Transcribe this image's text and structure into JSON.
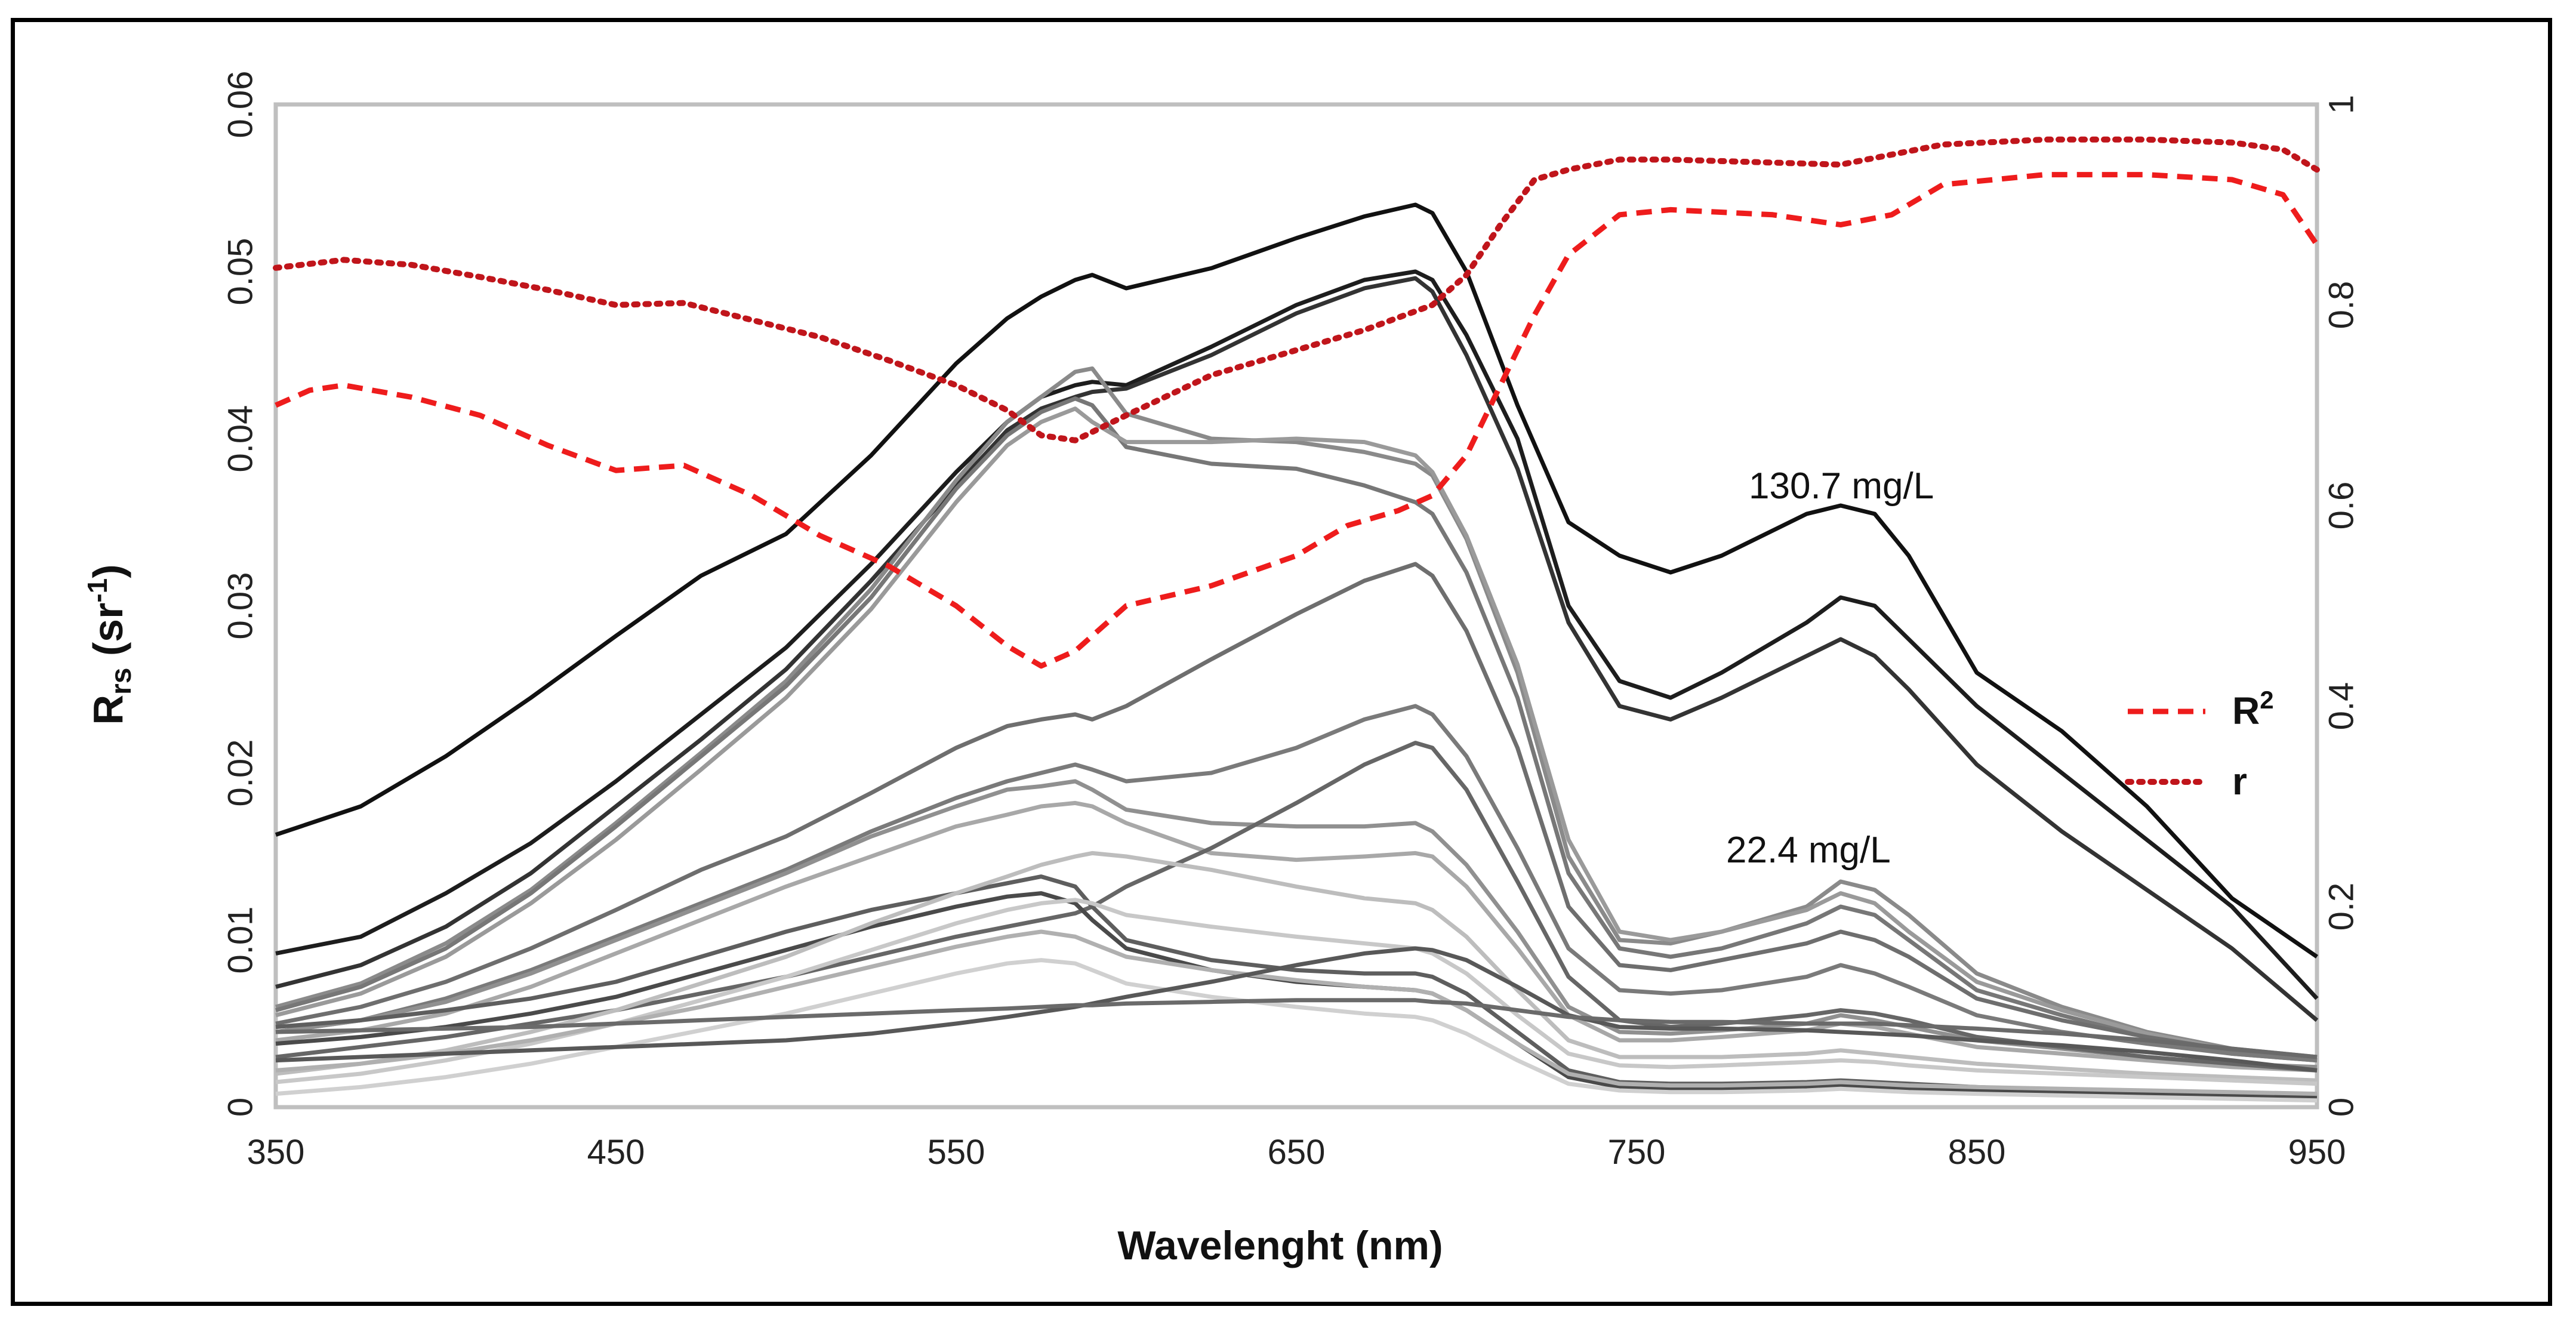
{
  "chart_data": {
    "type": "line",
    "title": "",
    "xlabel": "Wavelenght (nm)",
    "ylabel": {
      "main": "R",
      "sub": "rs",
      "unit_open": " (sr",
      "unit_sup": "-1",
      "unit_close": ")"
    },
    "xlim": [
      350,
      950
    ],
    "xticks": [
      350,
      450,
      550,
      650,
      750,
      850,
      950
    ],
    "ylim": [
      0,
      0.06
    ],
    "yticks": [
      0,
      0.01,
      0.02,
      0.03,
      0.04,
      0.05,
      0.06
    ],
    "ytick_labels": [
      "0",
      "0.01",
      "0.02",
      "0.03",
      "0.04",
      "0.05",
      "0.06"
    ],
    "y2lim": [
      0,
      1
    ],
    "y2ticks": [
      0,
      0.2,
      0.4,
      0.6,
      0.8,
      1
    ],
    "y2tick_labels": [
      "0",
      "0.2",
      "0.4",
      "0.6",
      "0.8",
      "1"
    ],
    "grid": false,
    "legend": {
      "placement": "right",
      "entries": [
        {
          "name": "R",
          "sup": "2",
          "style": "dashed",
          "color": "#ee1c1c"
        },
        {
          "name": "r",
          "sup": "",
          "style": "dotted",
          "color": "#c0151b"
        }
      ]
    },
    "annotations": [
      {
        "text": "130.7 mg/L",
        "x": 830,
        "y": 0.0368
      },
      {
        "text": "22.4 mg/L",
        "x": 810,
        "y": 0.0155
      }
    ],
    "x": [
      350,
      375,
      400,
      425,
      450,
      475,
      500,
      525,
      550,
      565,
      575,
      585,
      590,
      600,
      625,
      650,
      670,
      685,
      690,
      700,
      715,
      730,
      745,
      760,
      775,
      800,
      810,
      820,
      830,
      850,
      875,
      900,
      925,
      950
    ],
    "spectra": [
      {
        "color": "#111111",
        "values": [
          0.0163,
          0.018,
          0.021,
          0.0245,
          0.0282,
          0.0318,
          0.0343,
          0.039,
          0.0445,
          0.0472,
          0.0485,
          0.0495,
          0.0498,
          0.049,
          0.0502,
          0.052,
          0.0533,
          0.054,
          0.0535,
          0.05,
          0.042,
          0.035,
          0.033,
          0.032,
          0.033,
          0.0355,
          0.036,
          0.0355,
          0.033,
          0.026,
          0.0225,
          0.018,
          0.0125,
          0.009
        ]
      },
      {
        "color": "#1d1d1d",
        "values": [
          0.0092,
          0.0102,
          0.0128,
          0.0158,
          0.0195,
          0.0235,
          0.0275,
          0.0325,
          0.038,
          0.041,
          0.0425,
          0.0432,
          0.0434,
          0.0432,
          0.0455,
          0.048,
          0.0495,
          0.05,
          0.0495,
          0.0462,
          0.04,
          0.03,
          0.0255,
          0.0245,
          0.026,
          0.029,
          0.0305,
          0.03,
          0.028,
          0.024,
          0.02,
          0.016,
          0.012,
          0.0065
        ]
      },
      {
        "color": "#333333",
        "values": [
          0.0072,
          0.0085,
          0.0108,
          0.014,
          0.018,
          0.022,
          0.0262,
          0.0315,
          0.0372,
          0.0405,
          0.0418,
          0.0425,
          0.0428,
          0.043,
          0.045,
          0.0475,
          0.049,
          0.0496,
          0.0488,
          0.045,
          0.0382,
          0.029,
          0.024,
          0.0232,
          0.0245,
          0.027,
          0.028,
          0.027,
          0.025,
          0.0205,
          0.0165,
          0.013,
          0.0095,
          0.0052
        ]
      },
      {
        "color": "#8a8a8a",
        "values": [
          0.006,
          0.0074,
          0.0098,
          0.013,
          0.017,
          0.0212,
          0.0255,
          0.031,
          0.0375,
          0.041,
          0.0425,
          0.044,
          0.0442,
          0.0415,
          0.04,
          0.0398,
          0.0392,
          0.0385,
          0.0378,
          0.034,
          0.026,
          0.015,
          0.01,
          0.0098,
          0.0105,
          0.012,
          0.0135,
          0.013,
          0.0115,
          0.008,
          0.006,
          0.0045,
          0.0035,
          0.003
        ]
      },
      {
        "color": "#777777",
        "values": [
          0.0058,
          0.0072,
          0.0095,
          0.0128,
          0.0168,
          0.021,
          0.0252,
          0.0305,
          0.037,
          0.0402,
          0.0416,
          0.0424,
          0.042,
          0.0395,
          0.0385,
          0.0382,
          0.0372,
          0.0362,
          0.0355,
          0.032,
          0.0245,
          0.014,
          0.0095,
          0.009,
          0.0095,
          0.011,
          0.012,
          0.0115,
          0.01,
          0.007,
          0.0055,
          0.0042,
          0.0032,
          0.0028
        ]
      },
      {
        "color": "#9a9a9a",
        "values": [
          0.0055,
          0.0068,
          0.009,
          0.0122,
          0.016,
          0.0202,
          0.0245,
          0.0298,
          0.0362,
          0.0396,
          0.041,
          0.0418,
          0.041,
          0.0398,
          0.0398,
          0.04,
          0.0398,
          0.039,
          0.038,
          0.0342,
          0.0265,
          0.016,
          0.0105,
          0.01,
          0.0105,
          0.0118,
          0.0128,
          0.0122,
          0.0105,
          0.0075,
          0.0058,
          0.0044,
          0.0034,
          0.003
        ]
      },
      {
        "color": "#6e6e6e",
        "values": [
          0.005,
          0.006,
          0.0075,
          0.0095,
          0.0118,
          0.0142,
          0.0162,
          0.0188,
          0.0215,
          0.0228,
          0.0232,
          0.0235,
          0.0232,
          0.024,
          0.0268,
          0.0295,
          0.0315,
          0.0325,
          0.0318,
          0.0285,
          0.0215,
          0.012,
          0.0085,
          0.0082,
          0.0088,
          0.0098,
          0.0105,
          0.01,
          0.009,
          0.0065,
          0.0052,
          0.0042,
          0.0034,
          0.003
        ]
      },
      {
        "color": "#7a7a7a",
        "values": [
          0.0045,
          0.0052,
          0.0065,
          0.0082,
          0.0102,
          0.0122,
          0.0142,
          0.0165,
          0.0185,
          0.0195,
          0.02,
          0.0205,
          0.0202,
          0.0195,
          0.02,
          0.0215,
          0.0232,
          0.024,
          0.0235,
          0.021,
          0.0155,
          0.0095,
          0.007,
          0.0068,
          0.007,
          0.0078,
          0.0085,
          0.008,
          0.0072,
          0.0055,
          0.0045,
          0.0038,
          0.0032,
          0.0028
        ]
      },
      {
        "color": "#909090",
        "values": [
          0.0045,
          0.0052,
          0.0063,
          0.008,
          0.01,
          0.012,
          0.014,
          0.0162,
          0.018,
          0.019,
          0.0192,
          0.0195,
          0.019,
          0.0178,
          0.017,
          0.0168,
          0.0168,
          0.017,
          0.0165,
          0.0145,
          0.0105,
          0.006,
          0.0045,
          0.0044,
          0.0046,
          0.005,
          0.0055,
          0.0052,
          0.0048,
          0.004,
          0.0035,
          0.003,
          0.0026,
          0.0024
        ]
      },
      {
        "color": "#a8a8a8",
        "values": [
          0.004,
          0.0046,
          0.0056,
          0.0072,
          0.0092,
          0.0112,
          0.0132,
          0.015,
          0.0168,
          0.0175,
          0.018,
          0.0182,
          0.018,
          0.017,
          0.0152,
          0.0148,
          0.015,
          0.0152,
          0.015,
          0.0132,
          0.0095,
          0.0055,
          0.004,
          0.004,
          0.0042,
          0.0046,
          0.005,
          0.0048,
          0.0044,
          0.0036,
          0.0032,
          0.0028,
          0.0024,
          0.0022
        ]
      },
      {
        "color": "#666666",
        "values": [
          0.003,
          0.0036,
          0.0042,
          0.005,
          0.0058,
          0.0068,
          0.0078,
          0.009,
          0.0102,
          0.0108,
          0.0112,
          0.0116,
          0.012,
          0.0132,
          0.0155,
          0.0182,
          0.0205,
          0.0218,
          0.0215,
          0.019,
          0.0135,
          0.0078,
          0.0052,
          0.0048,
          0.005,
          0.0055,
          0.0058,
          0.0056,
          0.0052,
          0.0042,
          0.0036,
          0.003,
          0.0026,
          0.0022
        ]
      },
      {
        "color": "#5e5e5e",
        "values": [
          0.0048,
          0.0052,
          0.0058,
          0.0065,
          0.0075,
          0.009,
          0.0105,
          0.0118,
          0.0128,
          0.0134,
          0.0138,
          0.0132,
          0.012,
          0.01,
          0.0088,
          0.0082,
          0.008,
          0.008,
          0.0078,
          0.0068,
          0.0045,
          0.0022,
          0.0015,
          0.0014,
          0.0014,
          0.0015,
          0.0016,
          0.0015,
          0.0014,
          0.0012,
          0.001,
          0.0009,
          0.0008,
          0.0007
        ]
      },
      {
        "color": "#4a4a4a",
        "values": [
          0.0038,
          0.0042,
          0.0048,
          0.0056,
          0.0066,
          0.008,
          0.0094,
          0.0108,
          0.012,
          0.0126,
          0.0128,
          0.0122,
          0.0112,
          0.0095,
          0.0082,
          0.0075,
          0.0072,
          0.007,
          0.0068,
          0.0058,
          0.0038,
          0.0018,
          0.0012,
          0.0011,
          0.0011,
          0.0012,
          0.0013,
          0.0012,
          0.0011,
          0.001,
          0.0009,
          0.0008,
          0.0007,
          0.0006
        ]
      },
      {
        "color": "#bdbdbd",
        "values": [
          0.002,
          0.0026,
          0.0034,
          0.0045,
          0.0058,
          0.0074,
          0.009,
          0.011,
          0.0128,
          0.0138,
          0.0145,
          0.015,
          0.0152,
          0.015,
          0.0142,
          0.0132,
          0.0125,
          0.0122,
          0.0118,
          0.0102,
          0.007,
          0.004,
          0.003,
          0.003,
          0.003,
          0.0032,
          0.0034,
          0.0032,
          0.003,
          0.0026,
          0.0023,
          0.002,
          0.0018,
          0.0016
        ]
      },
      {
        "color": "#c8c8c8",
        "values": [
          0.0015,
          0.002,
          0.0028,
          0.0038,
          0.005,
          0.0064,
          0.0078,
          0.0094,
          0.011,
          0.0118,
          0.0122,
          0.0124,
          0.0122,
          0.0115,
          0.0108,
          0.0102,
          0.0098,
          0.0095,
          0.0092,
          0.008,
          0.0055,
          0.0032,
          0.0025,
          0.0024,
          0.0025,
          0.0027,
          0.0028,
          0.0027,
          0.0025,
          0.0022,
          0.002,
          0.0018,
          0.0016,
          0.0014
        ]
      },
      {
        "color": "#b0b0b0",
        "values": [
          0.0022,
          0.0026,
          0.0032,
          0.004,
          0.005,
          0.006,
          0.0072,
          0.0084,
          0.0096,
          0.0102,
          0.0105,
          0.0102,
          0.0098,
          0.009,
          0.0082,
          0.0076,
          0.0072,
          0.007,
          0.0068,
          0.0058,
          0.0038,
          0.002,
          0.0014,
          0.0013,
          0.0013,
          0.0014,
          0.0015,
          0.0014,
          0.0013,
          0.0012,
          0.0011,
          0.001,
          0.0009,
          0.0008
        ]
      },
      {
        "color": "#d0d0d0",
        "values": [
          0.0008,
          0.0012,
          0.0018,
          0.0026,
          0.0036,
          0.0046,
          0.0056,
          0.0068,
          0.008,
          0.0086,
          0.0088,
          0.0086,
          0.0082,
          0.0074,
          0.0066,
          0.006,
          0.0056,
          0.0054,
          0.0052,
          0.0044,
          0.0028,
          0.0014,
          0.001,
          0.0009,
          0.0009,
          0.001,
          0.0011,
          0.001,
          0.0009,
          0.0008,
          0.0007,
          0.0006,
          0.0005,
          0.0004
        ]
      },
      {
        "color": "#585858",
        "values": [
          0.0028,
          0.003,
          0.0032,
          0.0034,
          0.0036,
          0.0038,
          0.004,
          0.0044,
          0.005,
          0.0054,
          0.0057,
          0.006,
          0.0062,
          0.0066,
          0.0075,
          0.0085,
          0.0092,
          0.0095,
          0.0094,
          0.0088,
          0.0072,
          0.0055,
          0.0048,
          0.0047,
          0.0047,
          0.0046,
          0.0045,
          0.0044,
          0.0043,
          0.004,
          0.0037,
          0.0033,
          0.0028,
          0.0022
        ]
      },
      {
        "color": "#6a6a6a",
        "values": [
          0.0045,
          0.0046,
          0.0047,
          0.0048,
          0.005,
          0.0052,
          0.0054,
          0.0056,
          0.0058,
          0.0059,
          0.006,
          0.0061,
          0.0061,
          0.0062,
          0.0063,
          0.0064,
          0.0064,
          0.0064,
          0.0063,
          0.0062,
          0.0058,
          0.0054,
          0.0052,
          0.0051,
          0.0051,
          0.005,
          0.005,
          0.005,
          0.0049,
          0.0047,
          0.0044,
          0.004,
          0.0035,
          0.003
        ]
      }
    ],
    "series": [
      {
        "name": "R2",
        "axis": "right",
        "style": "dashed",
        "color": "#ee1c1c",
        "x": [
          350,
          360,
          370,
          390,
          410,
          430,
          450,
          470,
          490,
          510,
          530,
          550,
          565,
          575,
          585,
          600,
          625,
          650,
          665,
          680,
          690,
          700,
          710,
          720,
          730,
          745,
          760,
          790,
          810,
          825,
          840,
          870,
          900,
          925,
          940,
          950
        ],
        "values": [
          0.7,
          0.715,
          0.72,
          0.708,
          0.69,
          0.66,
          0.635,
          0.64,
          0.61,
          0.57,
          0.54,
          0.5,
          0.46,
          0.44,
          0.455,
          0.5,
          0.52,
          0.55,
          0.58,
          0.595,
          0.61,
          0.65,
          0.72,
          0.79,
          0.85,
          0.89,
          0.895,
          0.89,
          0.88,
          0.89,
          0.92,
          0.93,
          0.93,
          0.925,
          0.91,
          0.86
        ]
      },
      {
        "name": "r",
        "axis": "right",
        "style": "dotted",
        "color": "#c0151b",
        "x": [
          350,
          370,
          390,
          410,
          430,
          450,
          470,
          490,
          510,
          530,
          550,
          565,
          575,
          585,
          600,
          625,
          650,
          670,
          690,
          700,
          710,
          720,
          730,
          745,
          760,
          790,
          810,
          825,
          840,
          870,
          900,
          925,
          940,
          950
        ],
        "values": [
          0.837,
          0.845,
          0.84,
          0.828,
          0.815,
          0.8,
          0.802,
          0.785,
          0.768,
          0.745,
          0.72,
          0.695,
          0.67,
          0.665,
          0.69,
          0.73,
          0.755,
          0.775,
          0.8,
          0.83,
          0.88,
          0.925,
          0.935,
          0.945,
          0.945,
          0.942,
          0.94,
          0.95,
          0.96,
          0.965,
          0.965,
          0.962,
          0.955,
          0.935
        ]
      }
    ]
  }
}
